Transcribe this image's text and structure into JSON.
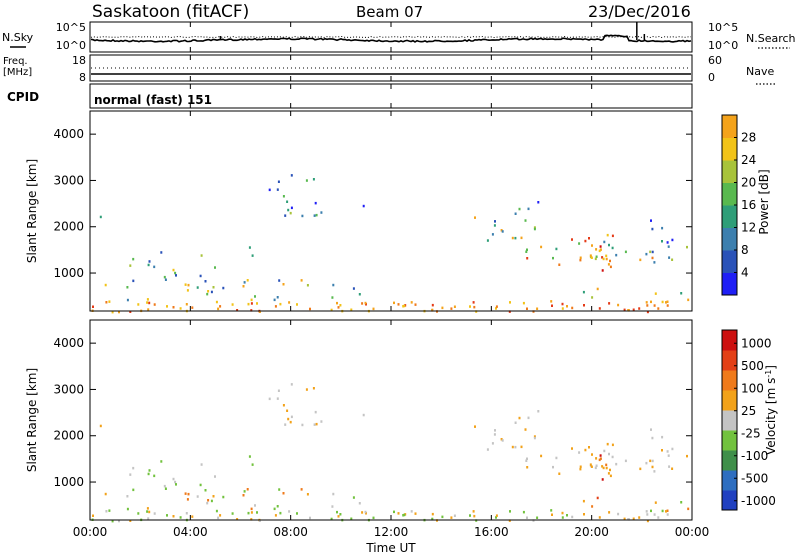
{
  "header": {
    "station": "Saskatoon (fitACF)",
    "beam": "Beam 07",
    "date": "23/Dec/2016"
  },
  "noise_panel": {
    "left_label": "N.Sky",
    "left_tick_top": "10^5",
    "left_tick_bottom": "10^0",
    "right_tick_top": "10^5",
    "right_tick_bottom": "10^0",
    "right_label": "N.Search"
  },
  "freq_panel": {
    "label_line1": "Freq.",
    "label_line2": "[MHz]",
    "left_tick_top": "18",
    "left_tick_bottom": "8",
    "right_tick_top": "60",
    "right_tick_bottom": "0",
    "right_label": "Nave"
  },
  "cpid_panel": {
    "label": "CPID",
    "value": "normal (fast) 151"
  },
  "x_axis": {
    "label": "Time UT",
    "ticks": [
      "00:00",
      "04:00",
      "08:00",
      "12:00",
      "16:00",
      "20:00",
      "00:00"
    ]
  },
  "colors": {
    "power_scale": [
      "#1f1ff5",
      "#2a52b8",
      "#3c7fae",
      "#2f9e78",
      "#59b94f",
      "#a8c33a",
      "#f2c318",
      "#f4a31b",
      "#ef7a1b",
      "#e43a17",
      "#d01010"
    ],
    "velocity_scale": [
      "#2040c0",
      "#2e6ec0",
      "#3f8f4a",
      "#72c23e",
      "#c4c4c4",
      "#f2a21a",
      "#ef7a1b",
      "#e34017",
      "#cc1010"
    ]
  },
  "chart_data": [
    {
      "type": "heatmap",
      "title": "",
      "xlabel": "",
      "ylabel": "Slant Range [km]",
      "x_range_hours": [
        0,
        24
      ],
      "ylim": [
        180,
        4500
      ],
      "y_ticks": [
        "1000",
        "2000",
        "3000",
        "4000"
      ],
      "colorbar": {
        "label": "Power [dB]",
        "ticks": [
          "4",
          "8",
          "12",
          "16",
          "20",
          "24",
          "28"
        ],
        "range": [
          0,
          32
        ]
      }
    },
    {
      "type": "heatmap",
      "title": "",
      "xlabel": "Time UT",
      "ylabel": "Slant Range [km]",
      "x_range_hours": [
        0,
        24
      ],
      "ylim": [
        180,
        4500
      ],
      "y_ticks": [
        "1000",
        "2000",
        "3000",
        "4000"
      ],
      "colorbar": {
        "label": "Velocity [m s^-1]",
        "ticks": [
          "1000",
          "500",
          "100",
          "25",
          "-25",
          "-100",
          "-500",
          "-1000"
        ]
      }
    }
  ]
}
